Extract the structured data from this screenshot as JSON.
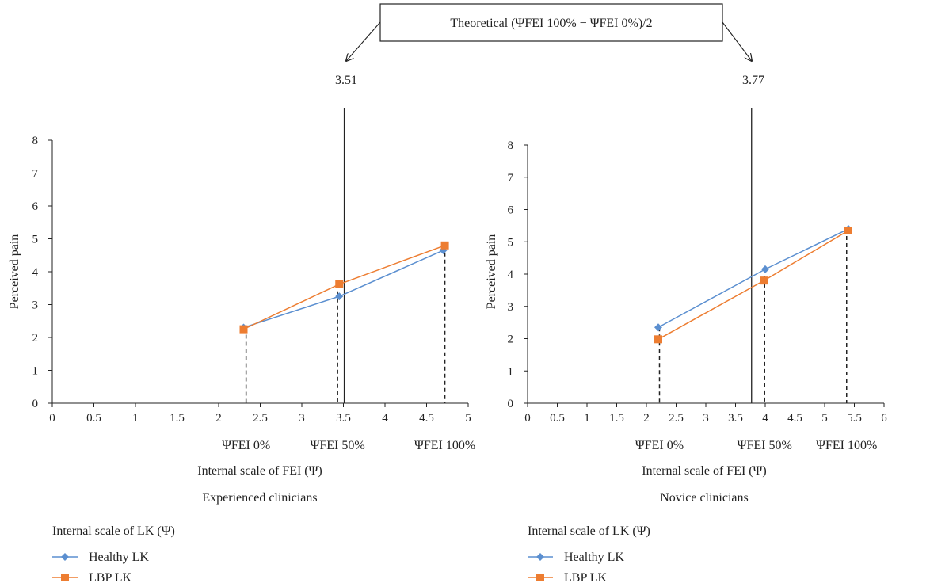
{
  "callout": {
    "label": "Theoretical (ΨFEI 100% − ΨFEI 0%)/2",
    "left_value": "3.51",
    "right_value": "3.77"
  },
  "colors": {
    "healthy": "#5b8fd0",
    "lbp": "#ed7d31",
    "axis": "#222222"
  },
  "chart_data": [
    {
      "type": "line",
      "title": "Experienced clinicians",
      "xlabel": "Internal scale of FEI (Ψ)",
      "ylabel": "Perceived pain",
      "xlim": [
        0,
        5
      ],
      "ylim": [
        0,
        8
      ],
      "x_ticks": [
        0,
        0.5,
        1,
        1.5,
        2,
        2.5,
        3,
        3.5,
        4,
        4.5,
        5
      ],
      "y_ticks": [
        0,
        1,
        2,
        3,
        4,
        5,
        6,
        7,
        8
      ],
      "legend_title": "Internal scale of LK (Ψ)",
      "series": [
        {
          "name": "Healthy LK",
          "marker": "diamond",
          "x": [
            2.3,
            3.45,
            4.7
          ],
          "y": [
            2.3,
            3.25,
            4.65
          ]
        },
        {
          "name": "LBP LK",
          "marker": "square",
          "x": [
            2.3,
            3.45,
            4.72
          ],
          "y": [
            2.25,
            3.62,
            4.8
          ]
        }
      ],
      "dashed_markers": [
        {
          "label": "ΨFEI 0%",
          "x": 2.33
        },
        {
          "label": "ΨFEI 50%",
          "x": 3.43
        },
        {
          "label": "ΨFEI 100%",
          "x": 4.72
        }
      ],
      "theoretical_line_x": 3.51
    },
    {
      "type": "line",
      "title": "Novice clinicians",
      "xlabel": "Internal scale of FEI (Ψ)",
      "ylabel": "Perceived pain",
      "xlim": [
        0,
        6
      ],
      "ylim": [
        0,
        8
      ],
      "x_ticks": [
        0,
        0.5,
        1,
        1.5,
        2,
        2.5,
        3,
        3.5,
        4,
        4.5,
        5,
        5.5,
        6
      ],
      "y_ticks": [
        0,
        1,
        2,
        3,
        4,
        5,
        6,
        7,
        8
      ],
      "legend_title": "Internal scale of LK (Ψ)",
      "series": [
        {
          "name": "Healthy LK",
          "marker": "diamond",
          "x": [
            2.2,
            4.0,
            5.4
          ],
          "y": [
            2.35,
            4.15,
            5.4
          ]
        },
        {
          "name": "LBP LK",
          "marker": "square",
          "x": [
            2.2,
            3.98,
            5.4
          ],
          "y": [
            1.98,
            3.8,
            5.35
          ]
        }
      ],
      "dashed_markers": [
        {
          "label": "ΨFEI 0%",
          "x": 2.22
        },
        {
          "label": "ΨFEI 50%",
          "x": 3.99
        },
        {
          "label": "ΨFEI 100%",
          "x": 5.37
        }
      ],
      "theoretical_line_x": 3.77
    }
  ]
}
